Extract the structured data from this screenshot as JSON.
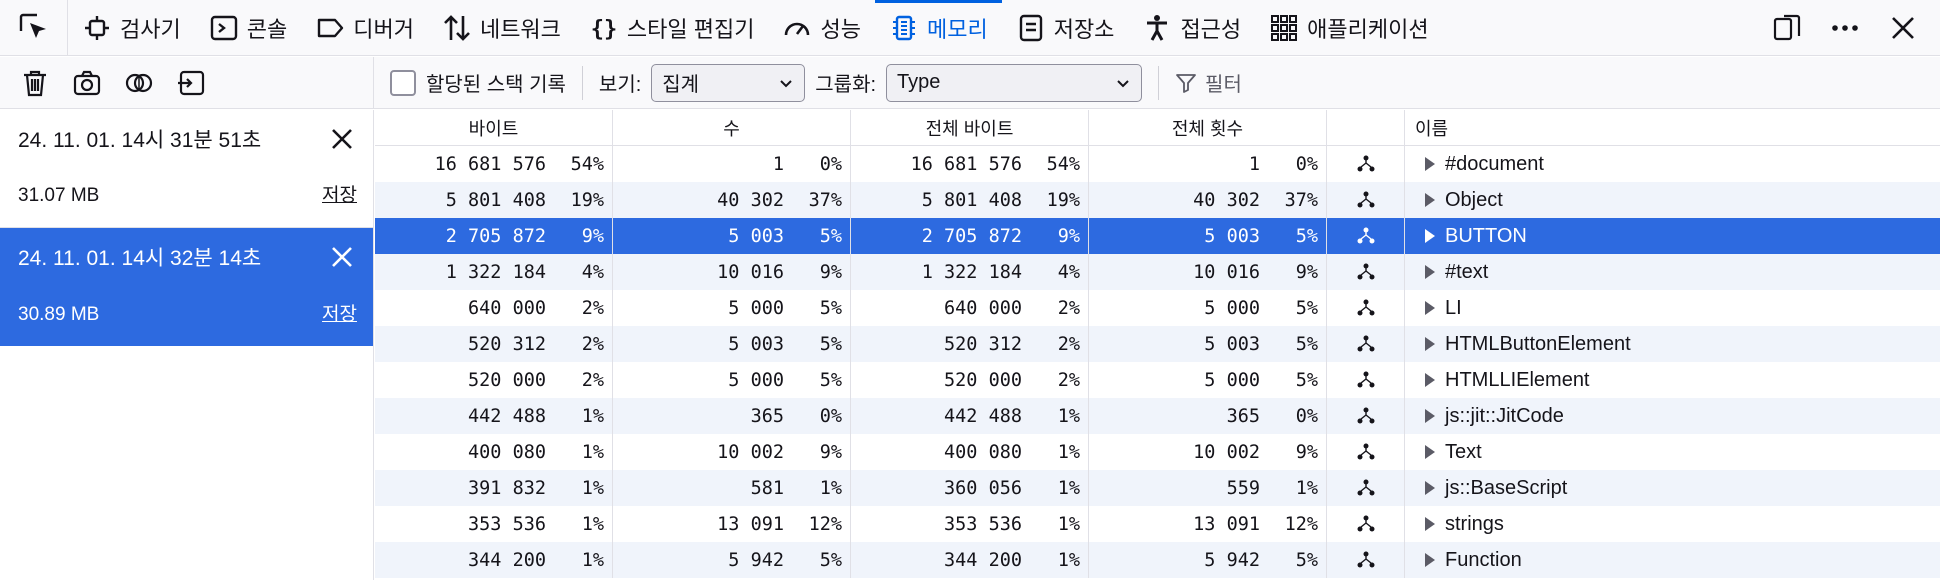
{
  "toolbar": {
    "tabs": [
      {
        "label": "검사기",
        "icon": "inspector-icon"
      },
      {
        "label": "콘솔",
        "icon": "console-icon"
      },
      {
        "label": "디버거",
        "icon": "debugger-icon"
      },
      {
        "label": "네트워크",
        "icon": "network-icon"
      },
      {
        "label": "스타일 편집기",
        "icon": "style-editor-icon"
      },
      {
        "label": "성능",
        "icon": "performance-icon"
      },
      {
        "label": "메모리",
        "icon": "memory-icon"
      },
      {
        "label": "저장소",
        "icon": "storage-icon"
      },
      {
        "label": "접근성",
        "icon": "accessibility-icon"
      },
      {
        "label": "애플리케이션",
        "icon": "application-icon"
      }
    ],
    "active_tab": "메모리"
  },
  "subbar": {
    "record_stacks_label": "할당된 스택 기록",
    "view_label": "보기:",
    "view_value": "집계",
    "group_label": "그룹화:",
    "group_value": "Type",
    "filter_label": "필터"
  },
  "snapshots": [
    {
      "date": "24. 11. 01. 14시 31분 51초",
      "size": "31.07 MB",
      "save": "저장",
      "selected": false
    },
    {
      "date": "24. 11. 01. 14시 32분 14초",
      "size": "30.89 MB",
      "save": "저장",
      "selected": true
    }
  ],
  "table": {
    "headers": [
      "바이트",
      "수",
      "전체 바이트",
      "전체 횟수",
      "",
      "이름"
    ],
    "rows": [
      {
        "bytes": "16 681 576",
        "bytes_pct": "54%",
        "count": "1",
        "count_pct": "0%",
        "total_bytes": "16 681 576",
        "total_bytes_pct": "54%",
        "total_count": "1",
        "total_count_pct": "0%",
        "name": "#document"
      },
      {
        "bytes": "5 801 408",
        "bytes_pct": "19%",
        "count": "40 302",
        "count_pct": "37%",
        "total_bytes": "5 801 408",
        "total_bytes_pct": "19%",
        "total_count": "40 302",
        "total_count_pct": "37%",
        "name": "Object"
      },
      {
        "bytes": "2 705 872",
        "bytes_pct": "9%",
        "count": "5 003",
        "count_pct": "5%",
        "total_bytes": "2 705 872",
        "total_bytes_pct": "9%",
        "total_count": "5 003",
        "total_count_pct": "5%",
        "name": "BUTTON"
      },
      {
        "bytes": "1 322 184",
        "bytes_pct": "4%",
        "count": "10 016",
        "count_pct": "9%",
        "total_bytes": "1 322 184",
        "total_bytes_pct": "4%",
        "total_count": "10 016",
        "total_count_pct": "9%",
        "name": "#text"
      },
      {
        "bytes": "640 000",
        "bytes_pct": "2%",
        "count": "5 000",
        "count_pct": "5%",
        "total_bytes": "640 000",
        "total_bytes_pct": "2%",
        "total_count": "5 000",
        "total_count_pct": "5%",
        "name": "LI"
      },
      {
        "bytes": "520 312",
        "bytes_pct": "2%",
        "count": "5 003",
        "count_pct": "5%",
        "total_bytes": "520 312",
        "total_bytes_pct": "2%",
        "total_count": "5 003",
        "total_count_pct": "5%",
        "name": "HTMLButtonElement"
      },
      {
        "bytes": "520 000",
        "bytes_pct": "2%",
        "count": "5 000",
        "count_pct": "5%",
        "total_bytes": "520 000",
        "total_bytes_pct": "2%",
        "total_count": "5 000",
        "total_count_pct": "5%",
        "name": "HTMLLIElement"
      },
      {
        "bytes": "442 488",
        "bytes_pct": "1%",
        "count": "365",
        "count_pct": "0%",
        "total_bytes": "442 488",
        "total_bytes_pct": "1%",
        "total_count": "365",
        "total_count_pct": "0%",
        "name": "js::jit::JitCode"
      },
      {
        "bytes": "400 080",
        "bytes_pct": "1%",
        "count": "10 002",
        "count_pct": "9%",
        "total_bytes": "400 080",
        "total_bytes_pct": "1%",
        "total_count": "10 002",
        "total_count_pct": "9%",
        "name": "Text"
      },
      {
        "bytes": "391 832",
        "bytes_pct": "1%",
        "count": "581",
        "count_pct": "1%",
        "total_bytes": "360 056",
        "total_bytes_pct": "1%",
        "total_count": "559",
        "total_count_pct": "1%",
        "name": "js::BaseScript"
      },
      {
        "bytes": "353 536",
        "bytes_pct": "1%",
        "count": "13 091",
        "count_pct": "12%",
        "total_bytes": "353 536",
        "total_bytes_pct": "1%",
        "total_count": "13 091",
        "total_count_pct": "12%",
        "name": "strings"
      },
      {
        "bytes": "344 200",
        "bytes_pct": "1%",
        "count": "5 942",
        "count_pct": "5%",
        "total_bytes": "344 200",
        "total_bytes_pct": "1%",
        "total_count": "5 942",
        "total_count_pct": "5%",
        "name": "Function"
      }
    ],
    "selected_row": 2
  },
  "colors": {
    "accent": "#0061e0",
    "selection": "#2d6ae0",
    "alt_row": "#f0f4fb"
  }
}
